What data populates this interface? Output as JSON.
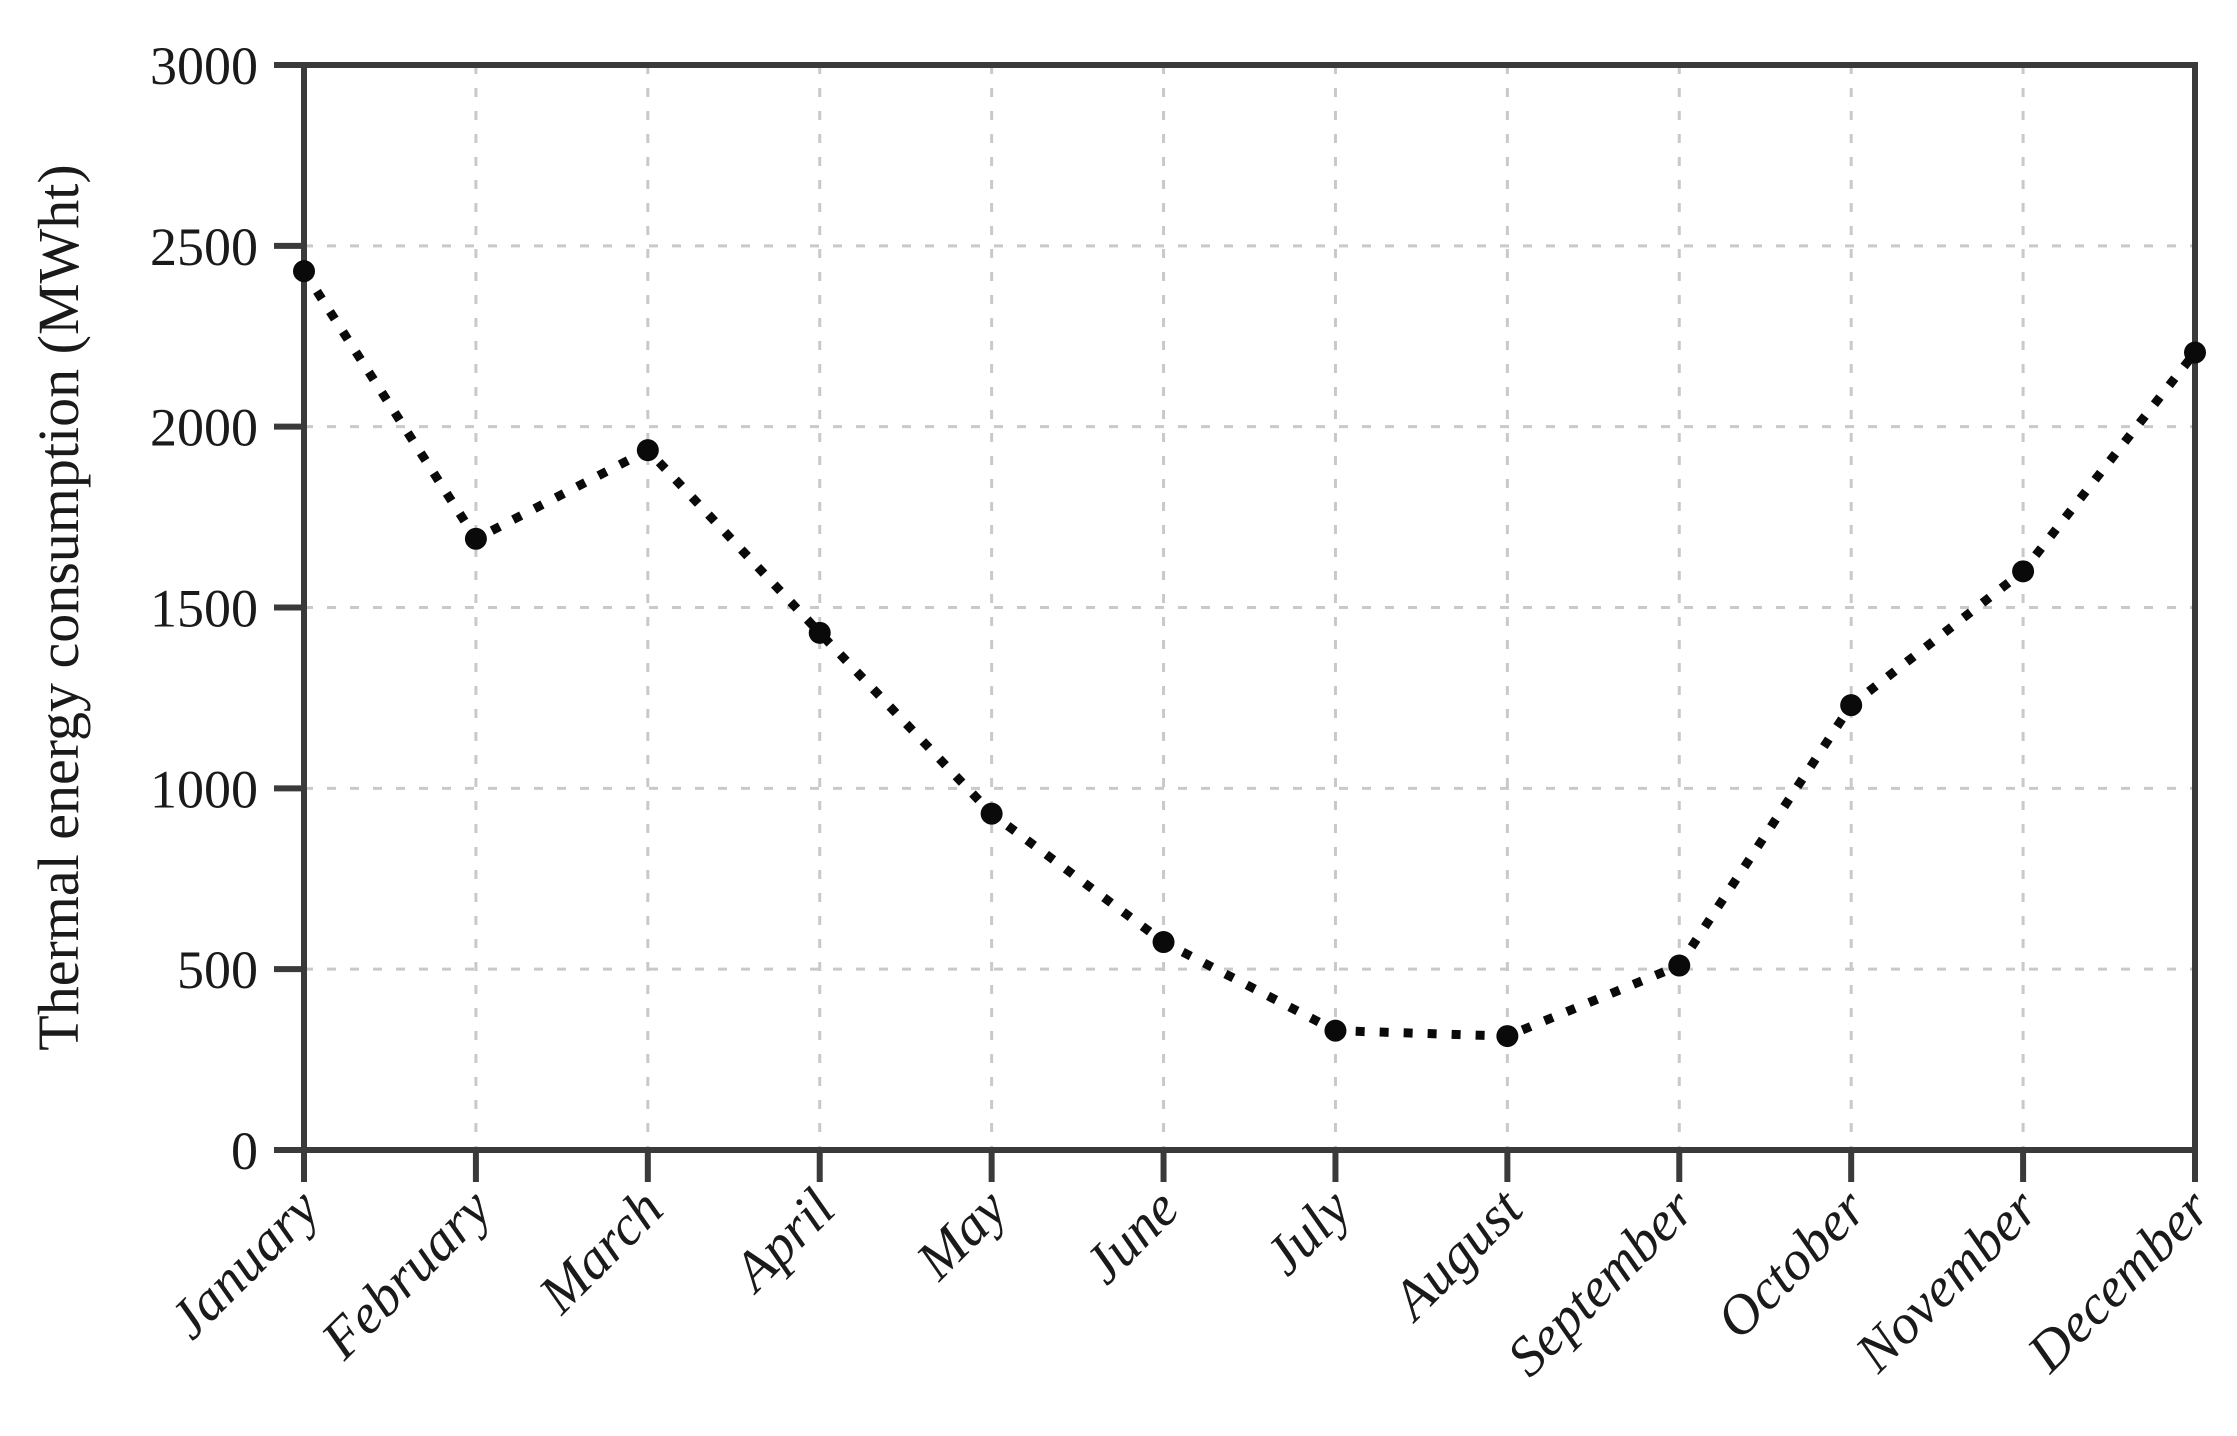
{
  "figure": {
    "background_color": "#ffffff",
    "axis_color": "#3a3a3a",
    "grid_color": "#c9c9c9",
    "line_color": "#0a0a0a",
    "marker_color": "#0a0a0a",
    "text_color": "#1a1a1a"
  },
  "chart_data": {
    "type": "line",
    "title": "",
    "xlabel": "",
    "ylabel": "Thermal energy consumption (MWht)",
    "categories": [
      "January",
      "February",
      "March",
      "April",
      "May",
      "June",
      "July",
      "August",
      "September",
      "October",
      "November",
      "December"
    ],
    "series": [
      {
        "name": "Thermal energy consumption",
        "values": [
          2430,
          1690,
          1935,
          1430,
          930,
          575,
          330,
          315,
          510,
          1230,
          1600,
          2205
        ]
      }
    ],
    "ylim": [
      0,
      3000
    ],
    "yticks": [
      0,
      500,
      1000,
      1500,
      2000,
      2500,
      3000
    ],
    "grid": "both-dashed",
    "line_style": "dotted",
    "marker_style": "filled-circle",
    "legend_position": "none",
    "x_tick_label_rotation_deg": 45
  }
}
